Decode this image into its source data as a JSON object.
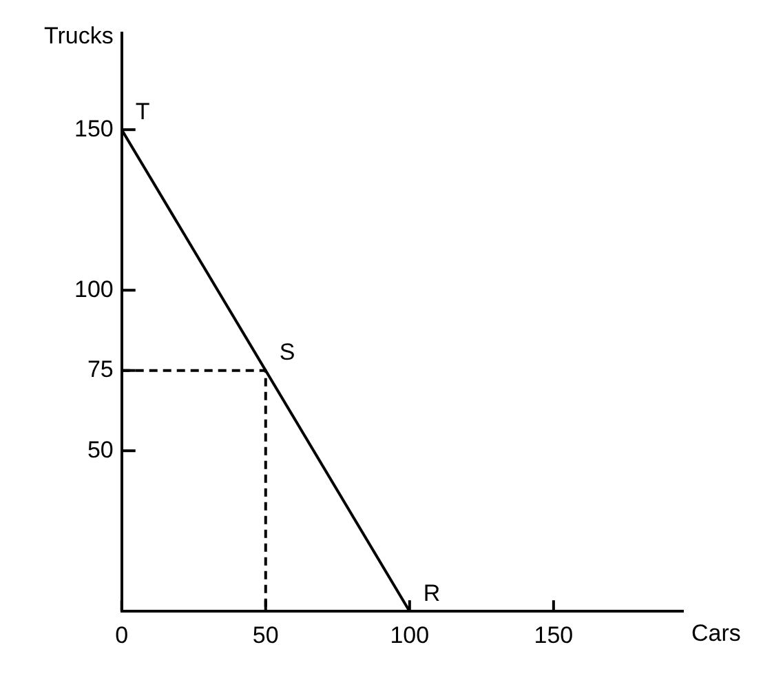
{
  "chart_data": {
    "type": "line",
    "xlabel": "Cars",
    "ylabel": "Trucks",
    "xlim": [
      0,
      195
    ],
    "ylim": [
      0,
      180
    ],
    "xticks": [
      0,
      50,
      100,
      150
    ],
    "yticks": [
      50,
      75,
      100,
      150
    ],
    "series": [
      {
        "color": "#000000",
        "x": [
          0,
          100
        ],
        "values": [
          150,
          0
        ],
        "line_style": "solid"
      },
      {
        "color": "#000000",
        "x": [
          0,
          50,
          50
        ],
        "values": [
          75,
          75,
          0
        ],
        "line_style": "dashed"
      }
    ],
    "annotations": [
      {
        "text": "T",
        "x": 0,
        "y": 150
      },
      {
        "text": "S",
        "x": 50,
        "y": 75
      },
      {
        "text": "R",
        "x": 100,
        "y": 0
      }
    ],
    "marker": "none",
    "grid": false,
    "legend": false
  }
}
